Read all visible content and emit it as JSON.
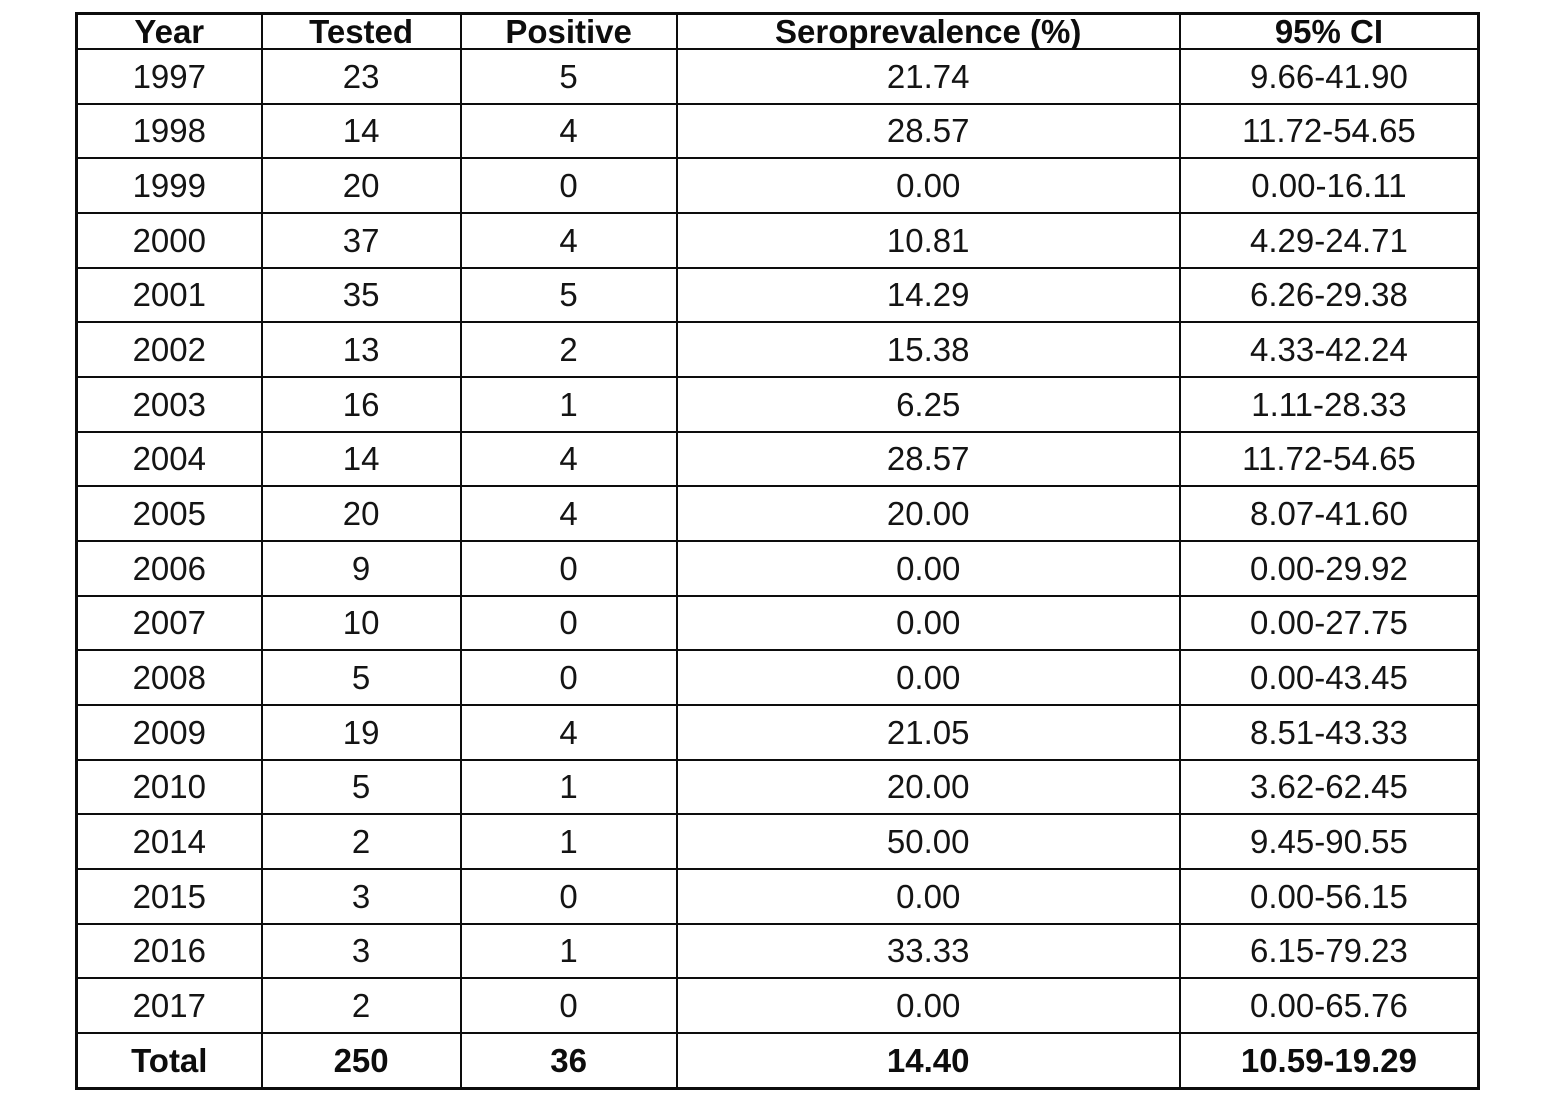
{
  "colors": {
    "background": "#ffffff",
    "border": "#0d0d0d",
    "text": "#141414"
  },
  "table": {
    "columns": [
      "Year",
      "Tested",
      "Positive",
      "Seroprevalence (%)",
      "95% CI"
    ],
    "rows": [
      [
        "1997",
        "23",
        "5",
        "21.74",
        "9.66-41.90"
      ],
      [
        "1998",
        "14",
        "4",
        "28.57",
        "11.72-54.65"
      ],
      [
        "1999",
        "20",
        "0",
        "0.00",
        "0.00-16.11"
      ],
      [
        "2000",
        "37",
        "4",
        "10.81",
        "4.29-24.71"
      ],
      [
        "2001",
        "35",
        "5",
        "14.29",
        "6.26-29.38"
      ],
      [
        "2002",
        "13",
        "2",
        "15.38",
        "4.33-42.24"
      ],
      [
        "2003",
        "16",
        "1",
        "6.25",
        "1.11-28.33"
      ],
      [
        "2004",
        "14",
        "4",
        "28.57",
        "11.72-54.65"
      ],
      [
        "2005",
        "20",
        "4",
        "20.00",
        "8.07-41.60"
      ],
      [
        "2006",
        "9",
        "0",
        "0.00",
        "0.00-29.92"
      ],
      [
        "2007",
        "10",
        "0",
        "0.00",
        "0.00-27.75"
      ],
      [
        "2008",
        "5",
        "0",
        "0.00",
        "0.00-43.45"
      ],
      [
        "2009",
        "19",
        "4",
        "21.05",
        "8.51-43.33"
      ],
      [
        "2010",
        "5",
        "1",
        "20.00",
        "3.62-62.45"
      ],
      [
        "2014",
        "2",
        "1",
        "50.00",
        "9.45-90.55"
      ],
      [
        "2015",
        "3",
        "0",
        "0.00",
        "0.00-56.15"
      ],
      [
        "2016",
        "3",
        "1",
        "33.33",
        "6.15-79.23"
      ],
      [
        "2017",
        "2",
        "0",
        "0.00",
        "0.00-65.76"
      ]
    ],
    "total_row": [
      "Total",
      "250",
      "36",
      "14.40",
      "10.59-19.29"
    ]
  },
  "chart_data": {
    "type": "table",
    "title": "",
    "columns": [
      "Year",
      "Tested",
      "Positive",
      "Seroprevalence (%)",
      "95% CI"
    ],
    "rows": [
      [
        "1997",
        23,
        5,
        21.74,
        "9.66-41.90"
      ],
      [
        "1998",
        14,
        4,
        28.57,
        "11.72-54.65"
      ],
      [
        "1999",
        20,
        0,
        0.0,
        "0.00-16.11"
      ],
      [
        "2000",
        37,
        4,
        10.81,
        "4.29-24.71"
      ],
      [
        "2001",
        35,
        5,
        14.29,
        "6.26-29.38"
      ],
      [
        "2002",
        13,
        2,
        15.38,
        "4.33-42.24"
      ],
      [
        "2003",
        16,
        1,
        6.25,
        "1.11-28.33"
      ],
      [
        "2004",
        14,
        4,
        28.57,
        "11.72-54.65"
      ],
      [
        "2005",
        20,
        4,
        20.0,
        "8.07-41.60"
      ],
      [
        "2006",
        9,
        0,
        0.0,
        "0.00-29.92"
      ],
      [
        "2007",
        10,
        0,
        0.0,
        "0.00-27.75"
      ],
      [
        "2008",
        5,
        0,
        0.0,
        "0.00-43.45"
      ],
      [
        "2009",
        19,
        4,
        21.05,
        "8.51-43.33"
      ],
      [
        "2010",
        5,
        1,
        20.0,
        "3.62-62.45"
      ],
      [
        "2014",
        2,
        1,
        50.0,
        "9.45-90.55"
      ],
      [
        "2015",
        3,
        0,
        0.0,
        "0.00-56.15"
      ],
      [
        "2016",
        3,
        1,
        33.33,
        "6.15-79.23"
      ],
      [
        "2017",
        2,
        0,
        0.0,
        "0.00-65.76"
      ],
      [
        "Total",
        250,
        36,
        14.4,
        "10.59-19.29"
      ]
    ]
  }
}
